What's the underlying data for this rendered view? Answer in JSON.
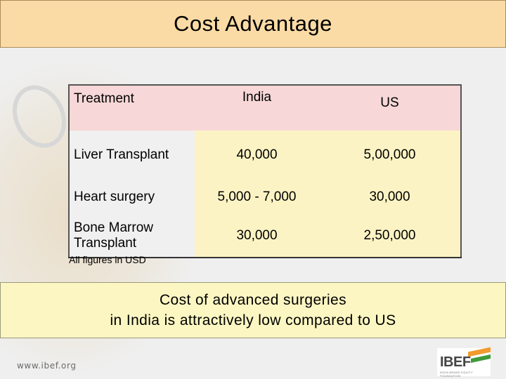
{
  "slide": {
    "title": "Cost Advantage",
    "footer_url": "www.ibef.org",
    "logo_text": "IBEF",
    "logo_tagline": "INDIA BRAND EQUITY FOUNDATION"
  },
  "table": {
    "headers": [
      "Treatment",
      "India",
      "US"
    ],
    "rows": [
      {
        "treatment": "Liver Transplant",
        "india": "40,000",
        "us": "5,00,000"
      },
      {
        "treatment": "Heart surgery",
        "india": "5,000 - 7,000",
        "us": "30,000"
      },
      {
        "treatment": "Bone Marrow Transplant",
        "india": "30,000",
        "us": "2,50,000"
      }
    ],
    "note": "All figures in USD"
  },
  "callout": {
    "line1": "Cost of advanced surgeries",
    "line2": "in India is attractively low compared to US"
  },
  "colors": {
    "title_bg": "#fbdba5",
    "header_bg": "#f7d7d7",
    "cell_bg": "#fcf3c4",
    "callout_bg": "#fcf6c2"
  }
}
